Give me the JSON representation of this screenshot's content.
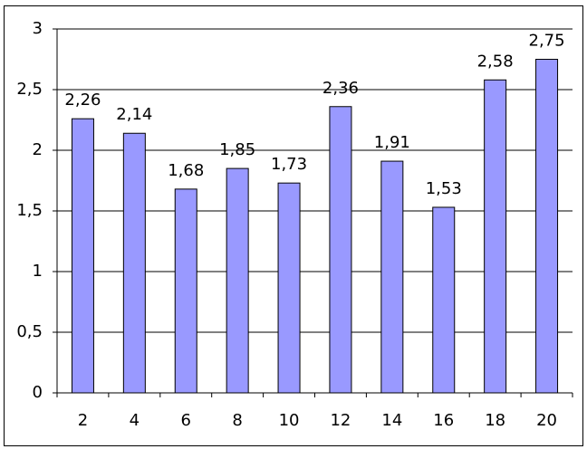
{
  "chart_data": {
    "type": "bar",
    "categories": [
      "2",
      "4",
      "6",
      "8",
      "10",
      "12",
      "14",
      "16",
      "18",
      "20"
    ],
    "values": [
      2.26,
      2.14,
      1.68,
      1.85,
      1.73,
      2.36,
      1.91,
      1.53,
      2.58,
      2.75
    ],
    "value_labels": [
      "2,26",
      "2,14",
      "1,68",
      "1,85",
      "1,73",
      "2,36",
      "1,91",
      "1,53",
      "2,58",
      "2,75"
    ],
    "color": "#9999ff",
    "ylim": [
      0,
      3
    ],
    "yticks": [
      0,
      {
        "value": 0.5,
        "label": "0,5"
      },
      1,
      {
        "value": 1.5,
        "label": "1,5"
      },
      2,
      {
        "value": 2.5,
        "label": "2,5"
      },
      3
    ],
    "grid": true
  }
}
